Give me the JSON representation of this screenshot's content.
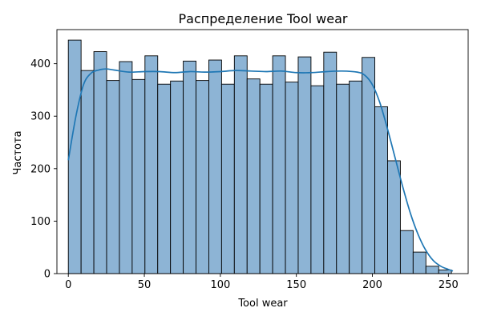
{
  "chart_data": {
    "type": "bar",
    "title": "Распределение Tool wear",
    "xlabel": "Tool wear",
    "ylabel": "Частота",
    "xlim": [
      -7.5,
      263
    ],
    "ylim": [
      0,
      465
    ],
    "x_ticks": [
      0,
      50,
      100,
      150,
      200,
      250
    ],
    "y_ticks": [
      0,
      100,
      200,
      300,
      400
    ],
    "bin_edges": [
      0,
      8.4,
      16.8,
      25.2,
      33.6,
      42.0,
      50.4,
      58.8,
      67.2,
      75.6,
      84.0,
      92.4,
      100.8,
      109.2,
      117.6,
      126.0,
      134.4,
      142.8,
      151.2,
      159.6,
      168.0,
      176.4,
      184.8,
      193.2,
      201.6,
      210.0,
      218.4,
      226.8,
      235.2,
      243.6,
      252.0
    ],
    "values": [
      445,
      387,
      423,
      368,
      404,
      370,
      415,
      361,
      367,
      405,
      368,
      407,
      361,
      415,
      371,
      361,
      415,
      365,
      413,
      358,
      422,
      361,
      367,
      412,
      318,
      215,
      82,
      41,
      14,
      7
    ],
    "kde": {
      "x": [
        0,
        5,
        10,
        15,
        20,
        25,
        30,
        40,
        50,
        60,
        70,
        80,
        90,
        100,
        110,
        120,
        130,
        140,
        150,
        160,
        170,
        180,
        190,
        195,
        200,
        205,
        210,
        215,
        220,
        225,
        230,
        235,
        240,
        245,
        250,
        253
      ],
      "y": [
        216,
        300,
        360,
        382,
        388,
        390,
        388,
        384,
        385,
        385,
        383,
        385,
        384,
        385,
        387,
        386,
        385,
        386,
        383,
        383,
        385,
        386,
        384,
        378,
        360,
        325,
        275,
        220,
        165,
        115,
        75,
        45,
        25,
        14,
        8,
        5
      ]
    },
    "bar_color": "#8db4d5",
    "bar_edge_color": "#000000",
    "kde_color": "#1f77b4",
    "grid": false,
    "legend": "none"
  }
}
